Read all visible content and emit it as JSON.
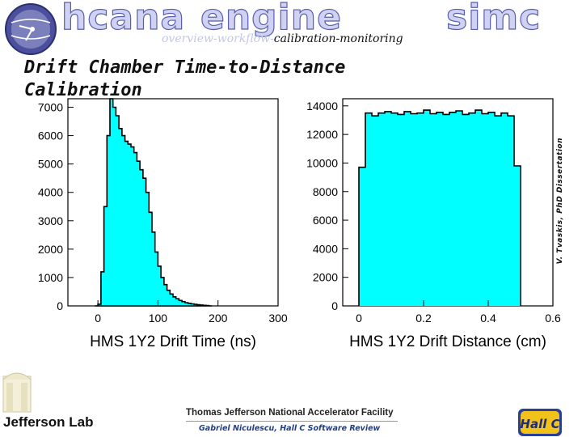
{
  "header": {
    "words": [
      "hcana",
      "engine",
      "simc"
    ],
    "subnav": {
      "item1": "overview",
      "sep": "-",
      "item2": "workflow",
      "item3": "calibration",
      "item4": "monitoring"
    }
  },
  "slide_title": "Drift Chamber Time-to-Distance Calibration",
  "side_credit": "V. Tvaskis, PhD Dissertation",
  "footer": {
    "lab_logo_text": "Jefferson Lab",
    "facility": "Thomas Jefferson National Accelerator Facility",
    "presenter": "Gabriel Niculescu, Hall C Software Review",
    "hallc_logo_text": "Hall C"
  },
  "colors": {
    "fill": "#00ffff",
    "outline": "#000000",
    "header_light": "#cfd2f2",
    "header_dark": "#5a5fa8",
    "presenter": "#1f3f8a"
  },
  "chart_data": [
    {
      "type": "area",
      "xlabel": "HMS 1Y2 Drift Time (ns)",
      "ylabel": "",
      "xlim": [
        -50,
        300
      ],
      "ylim": [
        0,
        7300
      ],
      "xticks": [
        0,
        100,
        200,
        300
      ],
      "yticks": [
        0,
        1000,
        2000,
        3000,
        4000,
        5000,
        6000,
        7000
      ],
      "grid": false,
      "series": [
        {
          "x": [
            -5,
            0,
            5,
            10,
            15,
            20,
            25,
            30,
            35,
            40,
            45,
            50,
            55,
            60,
            65,
            70,
            75,
            80,
            85,
            90,
            95,
            100,
            105,
            110,
            115,
            120,
            125,
            130,
            135,
            140,
            145,
            150,
            155,
            160,
            165,
            170,
            175,
            180,
            185
          ],
          "values": [
            0,
            60,
            1200,
            3500,
            6000,
            7300,
            7000,
            6700,
            6250,
            6000,
            5800,
            5700,
            5600,
            5400,
            5100,
            4800,
            4500,
            4000,
            3300,
            2600,
            1900,
            1400,
            1000,
            750,
            550,
            420,
            320,
            250,
            190,
            150,
            115,
            90,
            70,
            55,
            40,
            30,
            20,
            12,
            0
          ]
        }
      ]
    },
    {
      "type": "bar",
      "xlabel": "HMS 1Y2 Drift Distance (cm)",
      "ylabel": "",
      "xlim": [
        -0.05,
        0.6
      ],
      "ylim": [
        0,
        14500
      ],
      "xticks": [
        0,
        0.2,
        0.4,
        0.6
      ],
      "yticks": [
        0,
        2000,
        4000,
        6000,
        8000,
        10000,
        12000,
        14000
      ],
      "grid": false,
      "series": [
        {
          "x": [
            0,
            0.02,
            0.04,
            0.06,
            0.08,
            0.1,
            0.12,
            0.14,
            0.16,
            0.18,
            0.2,
            0.22,
            0.24,
            0.26,
            0.28,
            0.3,
            0.32,
            0.34,
            0.36,
            0.38,
            0.4,
            0.42,
            0.44,
            0.46,
            0.48
          ],
          "values": [
            9700,
            13500,
            13300,
            13500,
            13600,
            13500,
            13400,
            13600,
            13450,
            13500,
            13700,
            13450,
            13550,
            13400,
            13550,
            13650,
            13400,
            13500,
            13700,
            13450,
            13550,
            13300,
            13500,
            13300,
            9800
          ]
        }
      ]
    }
  ]
}
